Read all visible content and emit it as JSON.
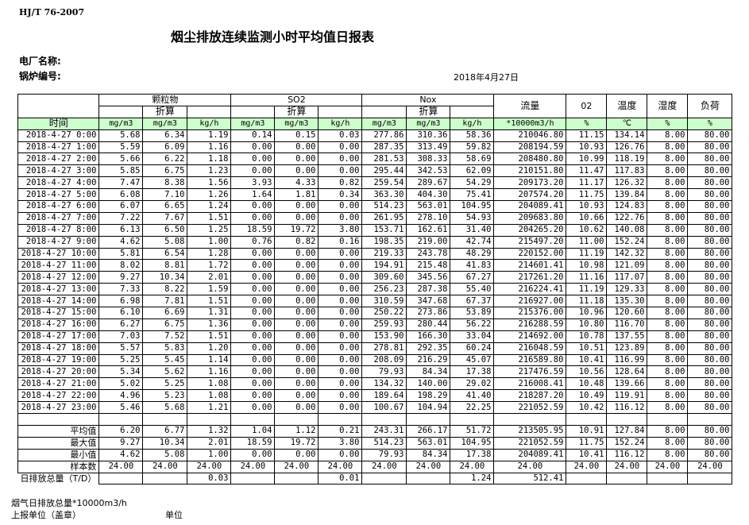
{
  "header": {
    "standard": "HJ/T  76-2007",
    "title": "烟尘排放连续监测小时平均值日报表",
    "plant_label": "电厂名称:",
    "boiler_label": "锅炉编号:",
    "date": "2018年4月27日"
  },
  "table": {
    "groups": {
      "particulate": "颗粒物",
      "so2": "SO2",
      "nox": "Nox",
      "flow": "流量",
      "o2": "02",
      "temp": "温度",
      "humidity": "湿度",
      "load": "负荷",
      "converted": "折算"
    },
    "units": [
      "时间",
      "mg/m3",
      "mg/m3",
      "kg/h",
      "mg/m3",
      "mg/m3",
      "kg/h",
      "mg/m3",
      "mg/m3",
      "kg/h",
      "*10000m3/h",
      "%",
      "℃",
      "%",
      "%"
    ],
    "rows": [
      [
        "2018-4-27 0:00",
        "5.68",
        "6.34",
        "1.19",
        "0.14",
        "0.15",
        "0.03",
        "277.86",
        "310.36",
        "58.36",
        "210046.80",
        "11.15",
        "134.14",
        "8.00",
        "80.00"
      ],
      [
        "2018-4-27 1:00",
        "5.59",
        "6.09",
        "1.16",
        "0.00",
        "0.00",
        "0.00",
        "287.35",
        "313.49",
        "59.82",
        "208194.59",
        "10.93",
        "126.76",
        "8.00",
        "80.00"
      ],
      [
        "2018-4-27 2:00",
        "5.66",
        "6.22",
        "1.18",
        "0.00",
        "0.00",
        "0.00",
        "281.53",
        "308.33",
        "58.69",
        "208480.80",
        "10.99",
        "118.19",
        "8.00",
        "80.00"
      ],
      [
        "2018-4-27 3:00",
        "5.85",
        "6.75",
        "1.23",
        "0.00",
        "0.00",
        "0.00",
        "295.44",
        "342.53",
        "62.09",
        "210151.80",
        "11.47",
        "117.83",
        "8.00",
        "80.00"
      ],
      [
        "2018-4-27 4:00",
        "7.47",
        "8.38",
        "1.56",
        "3.93",
        "4.33",
        "0.82",
        "259.54",
        "289.67",
        "54.29",
        "209173.20",
        "11.17",
        "126.32",
        "8.00",
        "80.00"
      ],
      [
        "2018-4-27 5:00",
        "6.08",
        "7.10",
        "1.26",
        "1.64",
        "1.81",
        "0.34",
        "363.30",
        "404.30",
        "75.41",
        "207574.20",
        "11.75",
        "139.84",
        "8.00",
        "80.00"
      ],
      [
        "2018-4-27 6:00",
        "6.07",
        "6.65",
        "1.24",
        "0.00",
        "0.00",
        "0.00",
        "514.23",
        "563.01",
        "104.95",
        "204089.41",
        "10.93",
        "124.83",
        "8.00",
        "80.00"
      ],
      [
        "2018-4-27 7:00",
        "7.22",
        "7.67",
        "1.51",
        "0.00",
        "0.00",
        "0.00",
        "261.95",
        "278.10",
        "54.93",
        "209683.80",
        "10.66",
        "122.76",
        "8.00",
        "80.00"
      ],
      [
        "2018-4-27 8:00",
        "6.13",
        "6.50",
        "1.25",
        "18.59",
        "19.72",
        "3.80",
        "153.71",
        "162.61",
        "31.40",
        "204265.20",
        "10.62",
        "140.08",
        "8.00",
        "80.00"
      ],
      [
        "2018-4-27 9:00",
        "4.62",
        "5.08",
        "1.00",
        "0.76",
        "0.82",
        "0.16",
        "198.35",
        "219.00",
        "42.74",
        "215497.20",
        "11.00",
        "152.24",
        "8.00",
        "80.00"
      ],
      [
        "2018-4-27 10:00",
        "5.81",
        "6.54",
        "1.28",
        "0.00",
        "0.00",
        "0.00",
        "219.33",
        "243.78",
        "48.29",
        "220152.00",
        "11.19",
        "142.32",
        "8.00",
        "80.00"
      ],
      [
        "2018-4-27 11:00",
        "8.02",
        "8.81",
        "1.72",
        "0.00",
        "0.00",
        "0.00",
        "194.91",
        "215.48",
        "41.83",
        "214601.41",
        "10.98",
        "121.09",
        "8.00",
        "80.00"
      ],
      [
        "2018-4-27 12:00",
        "9.27",
        "10.34",
        "2.01",
        "0.00",
        "0.00",
        "0.00",
        "309.60",
        "345.56",
        "67.27",
        "217261.20",
        "11.16",
        "117.07",
        "8.00",
        "80.00"
      ],
      [
        "2018-4-27 13:00",
        "7.33",
        "8.22",
        "1.59",
        "0.00",
        "0.00",
        "0.00",
        "256.23",
        "287.38",
        "55.40",
        "216224.41",
        "11.19",
        "129.33",
        "8.00",
        "80.00"
      ],
      [
        "2018-4-27 14:00",
        "6.98",
        "7.81",
        "1.51",
        "0.00",
        "0.00",
        "0.00",
        "310.59",
        "347.68",
        "67.37",
        "216927.00",
        "11.18",
        "135.30",
        "8.00",
        "80.00"
      ],
      [
        "2018-4-27 15:00",
        "6.10",
        "6.69",
        "1.31",
        "0.00",
        "0.00",
        "0.00",
        "250.22",
        "273.86",
        "53.89",
        "215376.00",
        "10.96",
        "120.60",
        "8.00",
        "80.00"
      ],
      [
        "2018-4-27 16:00",
        "6.27",
        "6.75",
        "1.36",
        "0.00",
        "0.00",
        "0.00",
        "259.93",
        "280.44",
        "56.22",
        "216288.59",
        "10.80",
        "116.70",
        "8.00",
        "80.00"
      ],
      [
        "2018-4-27 17:00",
        "7.03",
        "7.52",
        "1.51",
        "0.00",
        "0.00",
        "0.00",
        "153.90",
        "166.30",
        "33.04",
        "214692.00",
        "10.78",
        "137.55",
        "8.00",
        "80.00"
      ],
      [
        "2018-4-27 18:00",
        "5.57",
        "5.83",
        "1.20",
        "0.00",
        "0.00",
        "0.00",
        "278.81",
        "292.35",
        "60.24",
        "216048.59",
        "10.51",
        "123.89",
        "8.00",
        "80.00"
      ],
      [
        "2018-4-27 19:00",
        "5.25",
        "5.45",
        "1.14",
        "0.00",
        "0.00",
        "0.00",
        "208.09",
        "216.29",
        "45.07",
        "216589.80",
        "10.41",
        "116.99",
        "8.00",
        "80.00"
      ],
      [
        "2018-4-27 20:00",
        "5.34",
        "5.62",
        "1.16",
        "0.00",
        "0.00",
        "0.00",
        "79.93",
        "84.34",
        "17.38",
        "217476.59",
        "10.56",
        "128.64",
        "8.00",
        "80.00"
      ],
      [
        "2018-4-27 21:00",
        "5.02",
        "5.25",
        "1.08",
        "0.00",
        "0.00",
        "0.00",
        "134.32",
        "140.00",
        "29.02",
        "216008.41",
        "10.48",
        "139.66",
        "8.00",
        "80.00"
      ],
      [
        "2018-4-27 22:00",
        "4.96",
        "5.23",
        "1.08",
        "0.00",
        "0.00",
        "0.00",
        "189.64",
        "198.29",
        "41.40",
        "218287.20",
        "10.49",
        "119.91",
        "8.00",
        "80.00"
      ],
      [
        "2018-4-27 23:00",
        "5.46",
        "5.68",
        "1.21",
        "0.00",
        "0.00",
        "0.00",
        "100.67",
        "104.94",
        "22.25",
        "221052.59",
        "10.42",
        "116.12",
        "8.00",
        "80.00"
      ]
    ],
    "summary": [
      [
        "平均值",
        "6.20",
        "6.77",
        "1.32",
        "1.04",
        "1.12",
        "0.21",
        "243.31",
        "266.17",
        "51.72",
        "213505.95",
        "10.91",
        "127.84",
        "8.00",
        "80.00"
      ],
      [
        "最大值",
        "9.27",
        "10.34",
        "2.01",
        "18.59",
        "19.72",
        "3.80",
        "514.23",
        "563.01",
        "104.95",
        "221052.59",
        "11.75",
        "152.24",
        "8.00",
        "80.00"
      ],
      [
        "最小值",
        "4.62",
        "5.08",
        "1.00",
        "0.00",
        "0.00",
        "0.00",
        "79.93",
        "84.34",
        "17.38",
        "204089.41",
        "10.41",
        "116.12",
        "8.00",
        "80.00"
      ],
      [
        "样本数",
        "24.00",
        "24.00",
        "24.00",
        "24.00",
        "24.00",
        "24.00",
        "24.00",
        "24.00",
        "24.00",
        "24.00",
        "24.00",
        "24.00",
        "24.00",
        "24.00"
      ],
      [
        "日排放总量（T/D）",
        "",
        "",
        "0.03",
        "",
        "",
        "0.01",
        "",
        "",
        "1.24",
        "512.41",
        "",
        "",
        "",
        ""
      ]
    ]
  },
  "footer": {
    "flue_gas_total": "烟气日排放总量*10000m3/h",
    "reporting_unit": "上报单位（盖章）",
    "unit": "单位"
  },
  "colors": {
    "unit_row_bg": "#ccffcc"
  }
}
